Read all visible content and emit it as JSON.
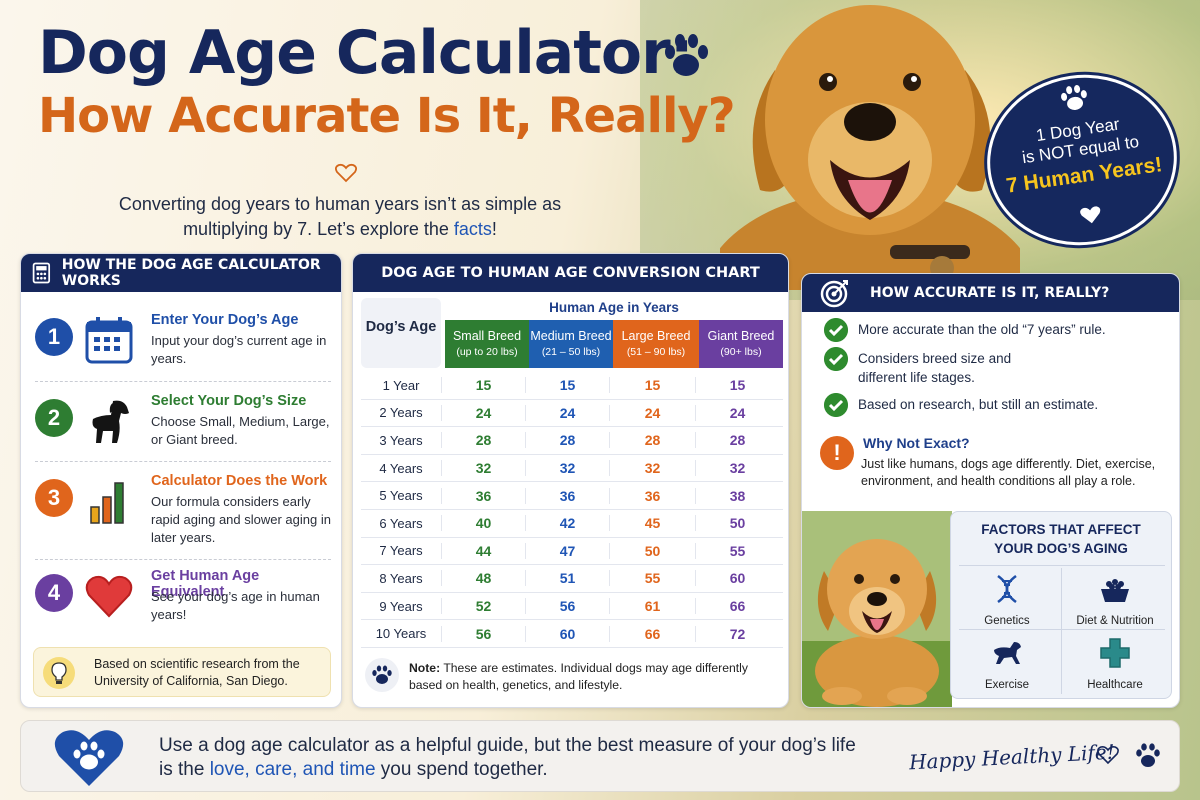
{
  "title": {
    "line1": "Dog Age Calculator:",
    "line2": "How Accurate Is It, Really?"
  },
  "subtitle": {
    "line1": "Converting dog years to human years isn’t as simple as",
    "line2_prefix": "multiplying by 7. Let’s explore the ",
    "line2_highlight": "facts",
    "line2_suffix": "!"
  },
  "badge": {
    "line1": "1 Dog Year",
    "line2": "is NOT equal to",
    "line3": "7 Human Years!"
  },
  "left_panel": {
    "heading": "HOW THE DOG AGE CALCULATOR WORKS",
    "steps": [
      {
        "number": "1",
        "title": "Enter Your Dog’s Age",
        "desc": "Input your dog’s current age in years.",
        "color": "#1f4fa8",
        "icon": "calendar-icon"
      },
      {
        "number": "2",
        "title": "Select Your Dog’s Size",
        "desc": "Choose Small, Medium, Large, or Giant breed.",
        "color": "#2e7d32",
        "icon": "dog-silhouette-icon"
      },
      {
        "number": "3",
        "title": "Calculator Does the Work",
        "desc": "Our formula considers early rapid aging and slower aging in later years.",
        "color": "#e0651c",
        "icon": "bar-chart-icon"
      },
      {
        "number": "4",
        "title": "Get Human Age Equivalent",
        "desc": "See your dog’s age in human years!",
        "color": "#6a3fa0",
        "icon": "heart-icon"
      }
    ],
    "note": "Based on scientific research from the University of California, San Diego."
  },
  "mid_panel": {
    "heading": "DOG AGE TO HUMAN AGE CONVERSION CHART",
    "age_header": "Dog’s Age",
    "human_header": "Human Age in Years",
    "breeds": [
      {
        "name": "Small Breed",
        "weight": "(up to 20 lbs)",
        "color": "#2e7d32"
      },
      {
        "name": "Medium Breed",
        "weight": "(21 – 50 lbs)",
        "color": "#1f5fb0"
      },
      {
        "name": "Large Breed",
        "weight": "(51 – 90 lbs)",
        "color": "#e0651c"
      },
      {
        "name": "Giant Breed",
        "weight": "(90+ lbs)",
        "color": "#6a3fa0"
      }
    ],
    "rows": [
      {
        "age": "1 Year",
        "values": [
          "15",
          "15",
          "15",
          "15"
        ]
      },
      {
        "age": "2 Years",
        "values": [
          "24",
          "24",
          "24",
          "24"
        ]
      },
      {
        "age": "3 Years",
        "values": [
          "28",
          "28",
          "28",
          "28"
        ]
      },
      {
        "age": "4 Years",
        "values": [
          "32",
          "32",
          "32",
          "32"
        ]
      },
      {
        "age": "5 Years",
        "values": [
          "36",
          "36",
          "36",
          "38"
        ]
      },
      {
        "age": "6 Years",
        "values": [
          "40",
          "42",
          "45",
          "50"
        ]
      },
      {
        "age": "7 Years",
        "values": [
          "44",
          "47",
          "50",
          "55"
        ]
      },
      {
        "age": "8 Years",
        "values": [
          "48",
          "51",
          "55",
          "60"
        ]
      },
      {
        "age": "9 Years",
        "values": [
          "52",
          "56",
          "61",
          "66"
        ]
      },
      {
        "age": "10 Years",
        "values": [
          "56",
          "60",
          "66",
          "72"
        ]
      }
    ],
    "note_label": "Note:",
    "note_text": " These are estimates. Individual dogs may age differently based on health, genetics, and lifestyle."
  },
  "right_panel": {
    "heading": "HOW ACCURATE IS IT, REALLY?",
    "checks": [
      "More accurate than the old “7 years” rule.",
      "Considers breed size and different life stages.",
      "Based on research, but still an estimate."
    ],
    "why_title": "Why Not Exact?",
    "why_text": "Just like humans, dogs age differently. Diet, exercise, environment, and health conditions all play a role.",
    "factors_title_1": "FACTORS THAT AFFECT",
    "factors_title_2": "YOUR DOG’S AGING",
    "factors": [
      "Genetics",
      "Diet & Nutrition",
      "Exercise",
      "Healthcare"
    ]
  },
  "banner": {
    "line1": "Use a dog age calculator as a helpful guide, but the best measure of your dog’s life",
    "line2_prefix": "is the ",
    "line2_highlight": "love, care, and time",
    "line2_suffix": " you spend together.",
    "script": "Happy Healthy Life!"
  },
  "colors": {
    "navy": "#16275c",
    "orange": "#d4661a",
    "blue_highlight": "#1f55b5",
    "badge_yellow": "#f7c51e"
  }
}
